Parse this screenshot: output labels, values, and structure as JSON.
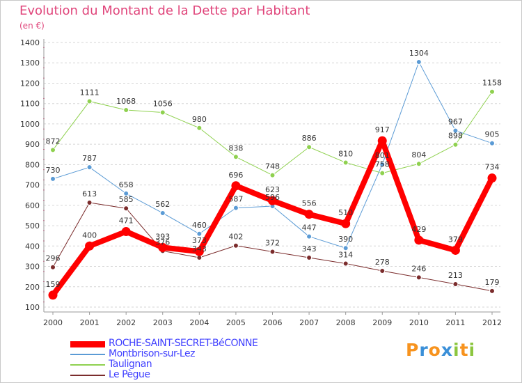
{
  "title": "Evolution du Montant de la Dette par Habitant",
  "subtitle": "(en €)",
  "chart_data": {
    "type": "line",
    "x": [
      "2000",
      "2001",
      "2002",
      "2003",
      "2004",
      "2005",
      "2006",
      "2007",
      "2008",
      "2009",
      "2010",
      "2011",
      "2012"
    ],
    "ylim": [
      100,
      1400
    ],
    "yticks": [
      100,
      200,
      300,
      400,
      500,
      600,
      700,
      800,
      900,
      1000,
      1100,
      1200,
      1300,
      1400
    ],
    "grid": "horizontal dashed",
    "legend_placement": "bottom-left",
    "series": [
      {
        "name": "ROCHE-SAINT-SECRET-BéCONNE",
        "color": "#ff0000",
        "values": [
          159,
          400,
          471,
          393,
          373,
          696,
          623,
          556,
          510,
          917,
          429,
          379,
          734
        ]
      },
      {
        "name": "Montbrison-sur-Lez",
        "color": "#5b9bd5",
        "values": [
          730,
          787,
          658,
          562,
          460,
          587,
          596,
          447,
          390,
          801,
          1304,
          967,
          905
        ]
      },
      {
        "name": "Taulignan",
        "color": "#8fd14f",
        "values": [
          872,
          1111,
          1068,
          1056,
          980,
          838,
          748,
          886,
          810,
          758,
          804,
          898,
          1158
        ]
      },
      {
        "name": "Le Pègue",
        "color": "#7b2c2c",
        "values": [
          296,
          613,
          585,
          376,
          343,
          402,
          372,
          343,
          314,
          278,
          246,
          213,
          179
        ]
      }
    ]
  },
  "logo": {
    "letters": [
      "P",
      "r",
      "o",
      "x",
      "i",
      "t",
      "i"
    ],
    "colors": [
      "#f7931e",
      "#3a8fd8",
      "#f7931e",
      "#3a8fd8",
      "#8cc63f",
      "#f7931e",
      "#8cc63f"
    ]
  }
}
